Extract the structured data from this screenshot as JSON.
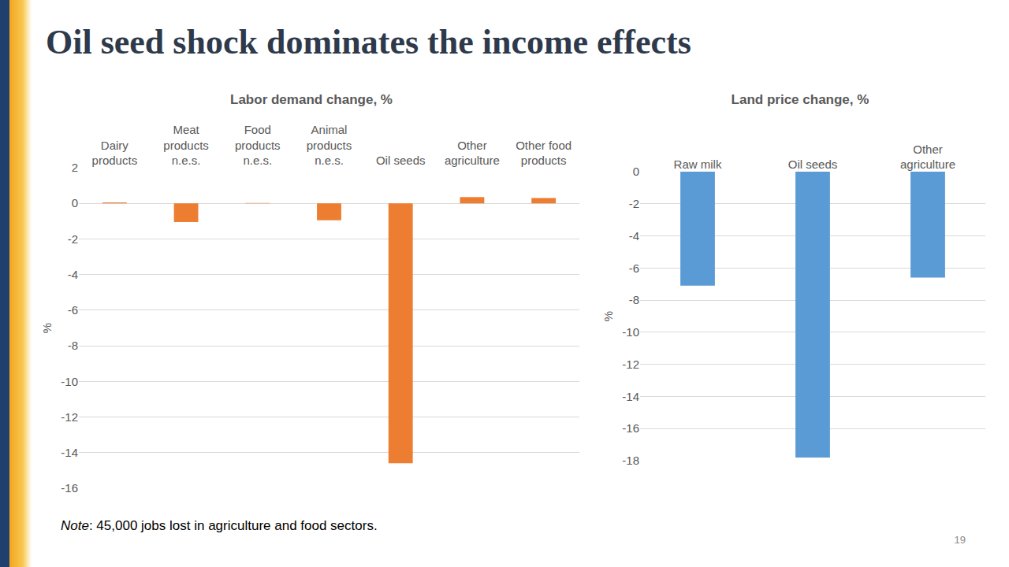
{
  "title": "Oil seed shock dominates the income effects",
  "chart_data": [
    {
      "type": "bar",
      "title": "Labor demand change, %",
      "ylabel": "%",
      "categories": [
        "Dairy products",
        "Meat products n.e.s.",
        "Food products n.e.s.",
        "Animal products n.e.s.",
        "Oil seeds",
        "Other agriculture",
        "Other food products"
      ],
      "values": [
        0.05,
        -1.05,
        0.02,
        -0.95,
        -14.6,
        0.35,
        0.3
      ],
      "color": "#ed7d31",
      "ylim": [
        -16,
        2
      ],
      "yticks": [
        -16,
        -14,
        -12,
        -10,
        -8,
        -6,
        -4,
        -2,
        0,
        2
      ],
      "grid": true
    },
    {
      "type": "bar",
      "title": "Land price change, %",
      "ylabel": "%",
      "categories": [
        "Raw milk",
        "Oil seeds",
        "Other agriculture"
      ],
      "values": [
        -7.1,
        -17.8,
        -6.6
      ],
      "color": "#5b9bd5",
      "ylim": [
        -18,
        0
      ],
      "yticks": [
        -18,
        -16,
        -14,
        -12,
        -10,
        -8,
        -6,
        -4,
        -2,
        0
      ],
      "grid": true
    }
  ],
  "note": {
    "label": "Note",
    "text": ": 45,000 jobs lost in agriculture and food sectors."
  },
  "page_number": 19
}
